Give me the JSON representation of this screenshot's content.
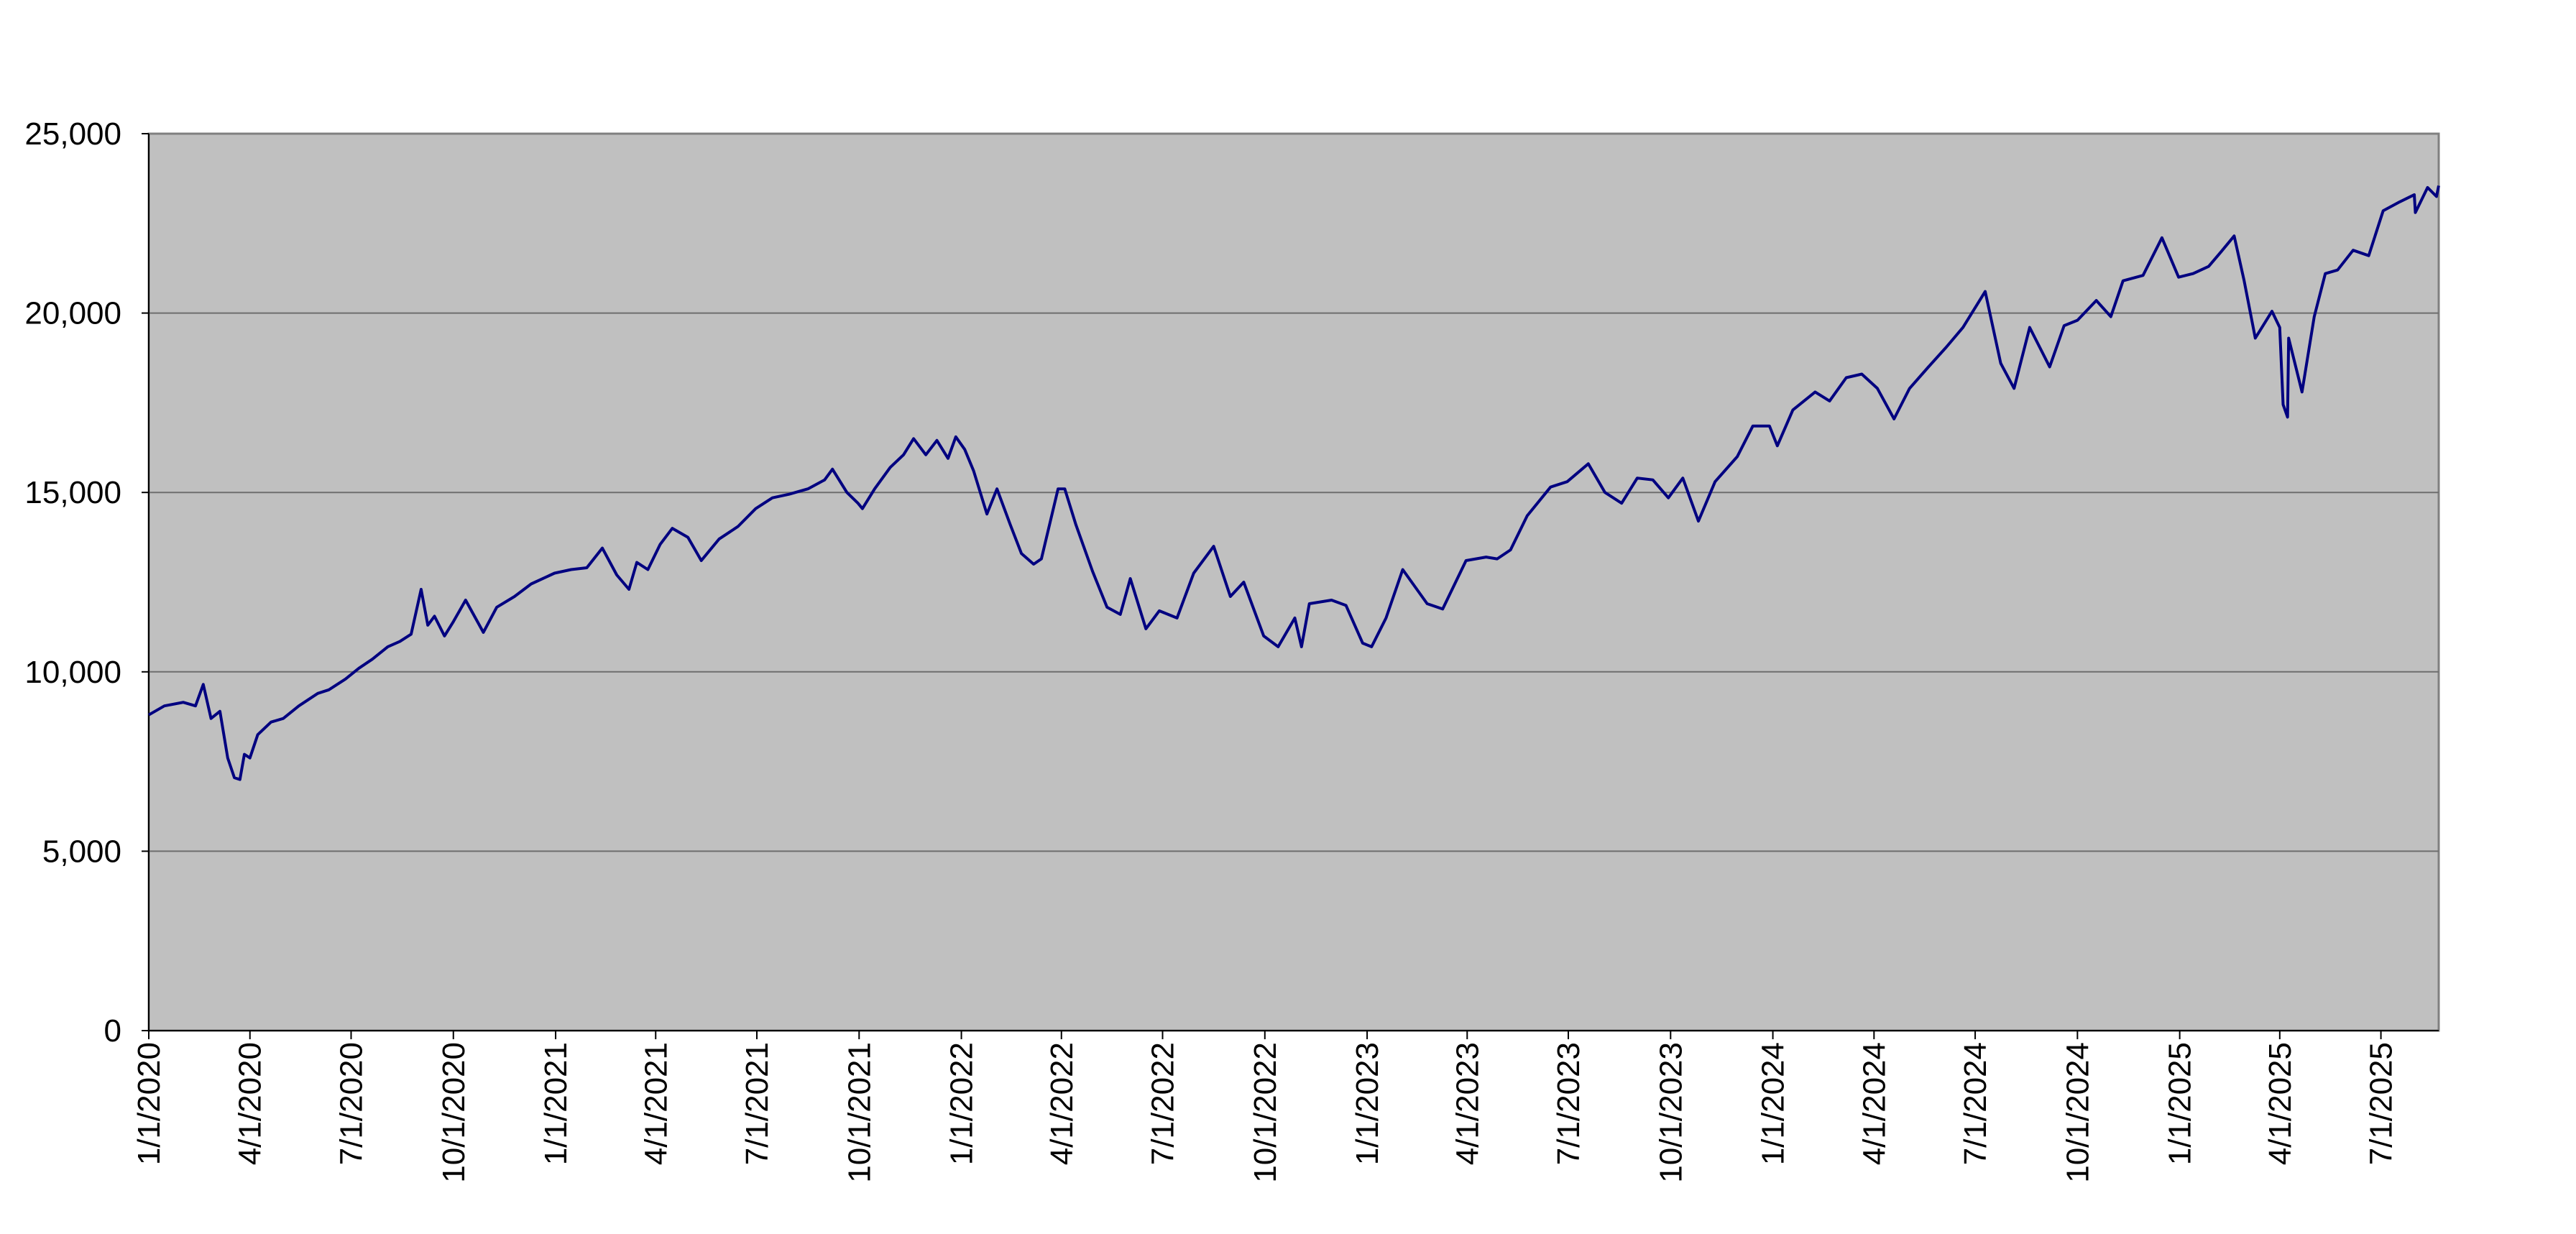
{
  "colors": {
    "plot_background": "#C0C0C0",
    "gridline": "#6E6E6E",
    "series_line": "#000080",
    "axis_text": "#000000"
  },
  "chart_data": {
    "type": "line",
    "title": "",
    "xlabel": "",
    "ylabel": "",
    "ylim": [
      0,
      25000
    ],
    "xlim": [
      "2020-01-01",
      "2025-08-22"
    ],
    "grid": true,
    "legend": "none",
    "y_ticks": [
      0,
      5000,
      10000,
      15000,
      20000,
      25000
    ],
    "y_tick_labels": [
      "0",
      "5,000",
      "10,000",
      "15,000",
      "20,000",
      "25,000"
    ],
    "x_ticks": [
      "2020-01-01",
      "2020-04-01",
      "2020-07-01",
      "2020-10-01",
      "2021-01-01",
      "2021-04-01",
      "2021-07-01",
      "2021-10-01",
      "2022-01-01",
      "2022-04-01",
      "2022-07-01",
      "2022-10-01",
      "2023-01-01",
      "2023-04-01",
      "2023-07-01",
      "2023-10-01",
      "2024-01-01",
      "2024-04-01",
      "2024-07-01",
      "2024-10-01",
      "2025-01-01",
      "2025-04-01",
      "2025-07-01"
    ],
    "x_tick_labels": [
      "1/1/2020",
      "4/1/2020",
      "7/1/2020",
      "10/1/2020",
      "1/1/2021",
      "4/1/2021",
      "7/1/2021",
      "10/1/2021",
      "1/1/2022",
      "4/1/2022",
      "7/1/2022",
      "10/1/2022",
      "1/1/2023",
      "4/1/2023",
      "7/1/2023",
      "10/1/2023",
      "1/1/2024",
      "4/1/2024",
      "7/1/2024",
      "10/1/2024",
      "1/1/2025",
      "4/1/2025",
      "7/1/2025"
    ],
    "series": [
      {
        "points": [
          [
            "2020-01-01",
            8800
          ],
          [
            "2020-01-15",
            9050
          ],
          [
            "2020-02-01",
            9150
          ],
          [
            "2020-02-12",
            9050
          ],
          [
            "2020-02-19",
            9650
          ],
          [
            "2020-02-26",
            8700
          ],
          [
            "2020-03-05",
            8900
          ],
          [
            "2020-03-12",
            7600
          ],
          [
            "2020-03-18",
            7050
          ],
          [
            "2020-03-23",
            7000
          ],
          [
            "2020-03-27",
            7700
          ],
          [
            "2020-04-01",
            7600
          ],
          [
            "2020-04-08",
            8250
          ],
          [
            "2020-04-20",
            8600
          ],
          [
            "2020-05-01",
            8700
          ],
          [
            "2020-05-15",
            9050
          ],
          [
            "2020-06-01",
            9400
          ],
          [
            "2020-06-11",
            9500
          ],
          [
            "2020-06-26",
            9800
          ],
          [
            "2020-07-08",
            10100
          ],
          [
            "2020-07-20",
            10350
          ],
          [
            "2020-08-03",
            10700
          ],
          [
            "2020-08-14",
            10850
          ],
          [
            "2020-08-24",
            11050
          ],
          [
            "2020-09-02",
            12300
          ],
          [
            "2020-09-08",
            11300
          ],
          [
            "2020-09-14",
            11550
          ],
          [
            "2020-09-23",
            11000
          ],
          [
            "2020-10-01",
            11400
          ],
          [
            "2020-10-12",
            12000
          ],
          [
            "2020-10-28",
            11100
          ],
          [
            "2020-11-09",
            11800
          ],
          [
            "2020-11-25",
            12100
          ],
          [
            "2020-12-10",
            12450
          ],
          [
            "2020-12-31",
            12750
          ],
          [
            "2021-01-15",
            12850
          ],
          [
            "2021-01-29",
            12900
          ],
          [
            "2021-02-12",
            13450
          ],
          [
            "2021-02-25",
            12700
          ],
          [
            "2021-03-08",
            12300
          ],
          [
            "2021-03-15",
            13050
          ],
          [
            "2021-03-25",
            12850
          ],
          [
            "2021-04-05",
            13550
          ],
          [
            "2021-04-16",
            14000
          ],
          [
            "2021-04-30",
            13750
          ],
          [
            "2021-05-12",
            13100
          ],
          [
            "2021-05-28",
            13700
          ],
          [
            "2021-06-14",
            14050
          ],
          [
            "2021-06-30",
            14550
          ],
          [
            "2021-07-15",
            14850
          ],
          [
            "2021-07-30",
            14950
          ],
          [
            "2021-08-16",
            15100
          ],
          [
            "2021-08-31",
            15350
          ],
          [
            "2021-09-07",
            15650
          ],
          [
            "2021-09-20",
            15000
          ],
          [
            "2021-09-30",
            14700
          ],
          [
            "2021-10-04",
            14550
          ],
          [
            "2021-10-15",
            15100
          ],
          [
            "2021-10-29",
            15700
          ],
          [
            "2021-11-10",
            16050
          ],
          [
            "2021-11-19",
            16500
          ],
          [
            "2021-11-30",
            16050
          ],
          [
            "2021-12-10",
            16450
          ],
          [
            "2021-12-20",
            15950
          ],
          [
            "2021-12-27",
            16550
          ],
          [
            "2022-01-04",
            16200
          ],
          [
            "2022-01-12",
            15600
          ],
          [
            "2022-01-24",
            14400
          ],
          [
            "2022-02-02",
            15100
          ],
          [
            "2022-02-14",
            14100
          ],
          [
            "2022-02-24",
            13300
          ],
          [
            "2022-03-07",
            13000
          ],
          [
            "2022-03-14",
            13150
          ],
          [
            "2022-03-29",
            15100
          ],
          [
            "2022-04-04",
            15100
          ],
          [
            "2022-04-14",
            14100
          ],
          [
            "2022-04-29",
            12800
          ],
          [
            "2022-05-12",
            11800
          ],
          [
            "2022-05-24",
            11600
          ],
          [
            "2022-06-02",
            12600
          ],
          [
            "2022-06-16",
            11200
          ],
          [
            "2022-06-28",
            11700
          ],
          [
            "2022-07-14",
            11500
          ],
          [
            "2022-07-29",
            12750
          ],
          [
            "2022-08-16",
            13500
          ],
          [
            "2022-08-31",
            12100
          ],
          [
            "2022-09-12",
            12500
          ],
          [
            "2022-09-30",
            11000
          ],
          [
            "2022-10-13",
            10700
          ],
          [
            "2022-10-28",
            11500
          ],
          [
            "2022-11-03",
            10700
          ],
          [
            "2022-11-10",
            11900
          ],
          [
            "2022-11-30",
            12000
          ],
          [
            "2022-12-13",
            11850
          ],
          [
            "2022-12-28",
            10800
          ],
          [
            "2023-01-05",
            10700
          ],
          [
            "2023-01-18",
            11500
          ],
          [
            "2023-02-02",
            12850
          ],
          [
            "2023-02-24",
            11900
          ],
          [
            "2023-03-10",
            11750
          ],
          [
            "2023-03-31",
            13100
          ],
          [
            "2023-04-18",
            13200
          ],
          [
            "2023-04-28",
            13150
          ],
          [
            "2023-05-10",
            13400
          ],
          [
            "2023-05-25",
            14350
          ],
          [
            "2023-06-15",
            15150
          ],
          [
            "2023-06-30",
            15300
          ],
          [
            "2023-07-19",
            15800
          ],
          [
            "2023-08-03",
            15000
          ],
          [
            "2023-08-18",
            14700
          ],
          [
            "2023-09-01",
            15400
          ],
          [
            "2023-09-15",
            15350
          ],
          [
            "2023-09-29",
            14850
          ],
          [
            "2023-10-12",
            15400
          ],
          [
            "2023-10-26",
            14200
          ],
          [
            "2023-11-10",
            15300
          ],
          [
            "2023-11-30",
            16000
          ],
          [
            "2023-12-14",
            16850
          ],
          [
            "2023-12-29",
            16850
          ],
          [
            "2024-01-05",
            16300
          ],
          [
            "2024-01-19",
            17300
          ],
          [
            "2024-02-08",
            17800
          ],
          [
            "2024-02-21",
            17550
          ],
          [
            "2024-03-07",
            18200
          ],
          [
            "2024-03-21",
            18300
          ],
          [
            "2024-04-04",
            17900
          ],
          [
            "2024-04-19",
            17050
          ],
          [
            "2024-05-03",
            17900
          ],
          [
            "2024-05-20",
            18500
          ],
          [
            "2024-06-05",
            19050
          ],
          [
            "2024-06-20",
            19600
          ],
          [
            "2024-07-10",
            20600
          ],
          [
            "2024-07-24",
            18600
          ],
          [
            "2024-08-05",
            17900
          ],
          [
            "2024-08-19",
            19600
          ],
          [
            "2024-09-06",
            18500
          ],
          [
            "2024-09-19",
            19650
          ],
          [
            "2024-10-01",
            19800
          ],
          [
            "2024-10-18",
            20350
          ],
          [
            "2024-10-31",
            19900
          ],
          [
            "2024-11-11",
            20900
          ],
          [
            "2024-11-29",
            21050
          ],
          [
            "2024-12-16",
            22100
          ],
          [
            "2024-12-31",
            21000
          ],
          [
            "2025-01-13",
            21100
          ],
          [
            "2025-01-27",
            21300
          ],
          [
            "2025-02-07",
            21700
          ],
          [
            "2025-02-19",
            22150
          ],
          [
            "2025-02-28",
            20900
          ],
          [
            "2025-03-10",
            19300
          ],
          [
            "2025-03-25",
            20050
          ],
          [
            "2025-04-01",
            19600
          ],
          [
            "2025-04-04",
            17450
          ],
          [
            "2025-04-08",
            17100
          ],
          [
            "2025-04-09",
            19300
          ],
          [
            "2025-04-21",
            17800
          ],
          [
            "2025-05-02",
            19900
          ],
          [
            "2025-05-12",
            21100
          ],
          [
            "2025-05-23",
            21200
          ],
          [
            "2025-06-06",
            21750
          ],
          [
            "2025-06-20",
            21600
          ],
          [
            "2025-07-03",
            22850
          ],
          [
            "2025-07-18",
            23100
          ],
          [
            "2025-07-31",
            23300
          ],
          [
            "2025-08-01",
            22800
          ],
          [
            "2025-08-12",
            23500
          ],
          [
            "2025-08-20",
            23250
          ],
          [
            "2025-08-22",
            23550
          ]
        ]
      }
    ]
  }
}
